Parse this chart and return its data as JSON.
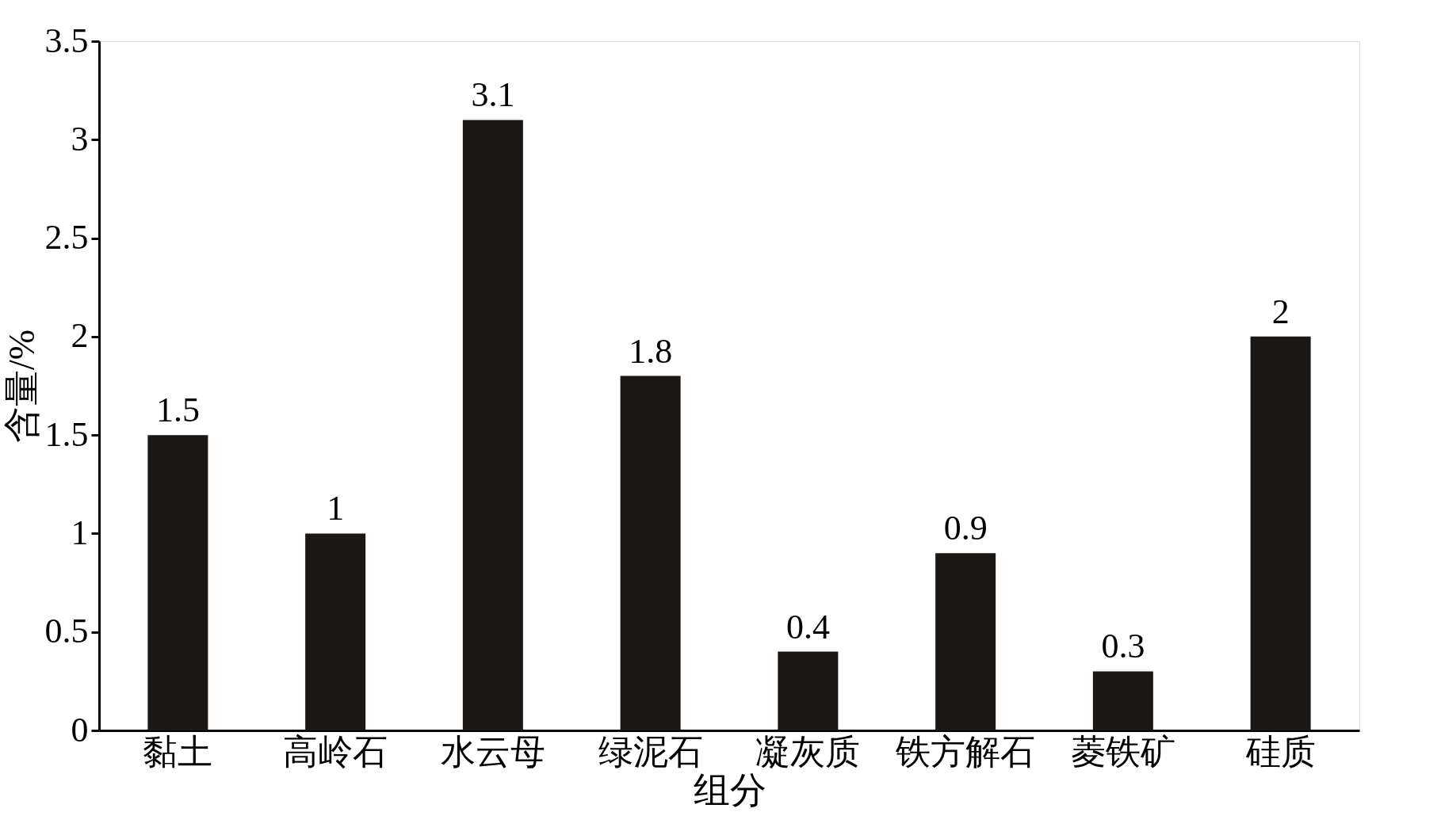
{
  "chart_data": {
    "type": "bar",
    "xlabel": "组分",
    "ylabel": "含量/%",
    "categories": [
      "黏土",
      "高岭石",
      "水云母",
      "绿泥石",
      "凝灰质",
      "铁方解石",
      "菱铁矿",
      "硅质"
    ],
    "values": [
      1.5,
      1,
      3.1,
      1.8,
      0.4,
      0.9,
      0.3,
      2
    ],
    "color": "#1a1714",
    "ylim": [
      0,
      3.5
    ],
    "yticks": [
      0,
      0.5,
      1,
      1.5,
      2,
      2.5,
      3,
      3.5
    ],
    "data_labels": true,
    "grid": false
  }
}
